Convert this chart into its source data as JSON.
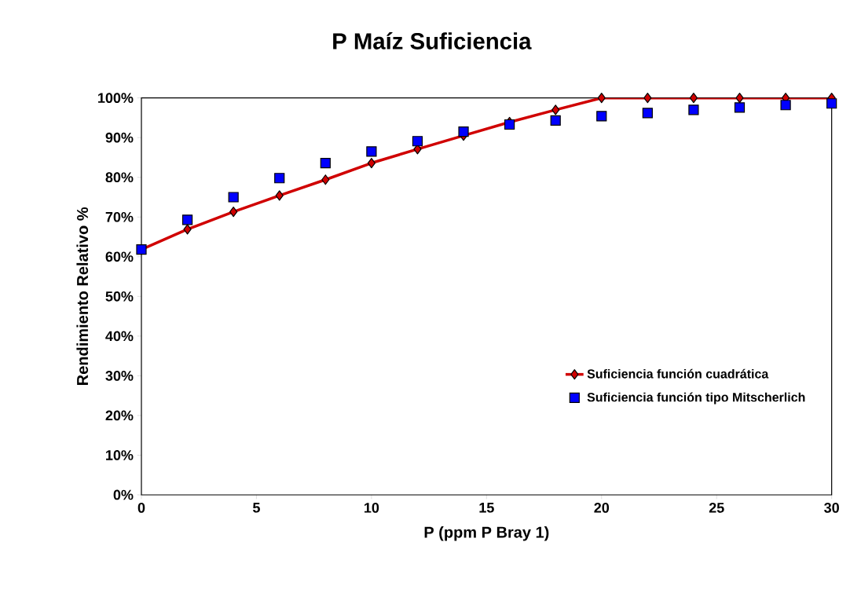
{
  "chart_data": {
    "type": "line",
    "title": "P Maíz Suficiencia",
    "xlabel": "P  (ppm P Bray 1)",
    "ylabel": "Rendimiento  Relativo %",
    "x": [
      0,
      2,
      4,
      6,
      8,
      10,
      12,
      14,
      16,
      18,
      20,
      22,
      24,
      26,
      28,
      30
    ],
    "series": [
      {
        "name": "Suficiencia función cuadrática",
        "color": "#d00000",
        "marker": "diamond",
        "values": [
          61.8,
          66.9,
          71.3,
          75.4,
          79.4,
          83.6,
          87.1,
          90.5,
          93.9,
          97,
          100,
          100,
          100,
          100,
          100,
          100
        ]
      },
      {
        "name": "Suficiencia función tipo Mitscherlich",
        "type": "scatter",
        "color": "#0000ff",
        "marker": "square",
        "values": [
          61.8,
          69.3,
          75,
          79.8,
          83.6,
          86.5,
          89.1,
          91.5,
          93.3,
          94.3,
          95.4,
          96.2,
          97,
          97.6,
          98.2,
          98.6
        ]
      }
    ],
    "xlim": [
      0,
      30
    ],
    "xticks": [
      0,
      5,
      10,
      15,
      20,
      25,
      30
    ],
    "ylim": [
      0,
      100
    ],
    "yticks": [
      {
        "value": 0,
        "label": "0%"
      },
      {
        "value": 10,
        "label": "10%"
      },
      {
        "value": 20,
        "label": "20%"
      },
      {
        "value": 30,
        "label": "30%"
      },
      {
        "value": 40,
        "label": "40%"
      },
      {
        "value": 50,
        "label": "50%"
      },
      {
        "value": 60,
        "label": "60%"
      },
      {
        "value": 70,
        "label": "70%"
      },
      {
        "value": 80,
        "label": "80%"
      },
      {
        "value": 90,
        "label": "90%"
      },
      {
        "value": 100,
        "label": "100%"
      }
    ],
    "grid": false,
    "legend": "bottom right"
  }
}
